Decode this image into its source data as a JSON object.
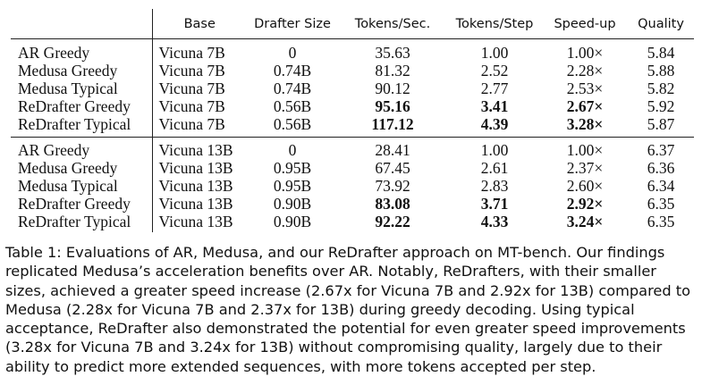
{
  "table": {
    "headers": [
      "",
      "Base",
      "Drafter Size",
      "Tokens/Sec.",
      "Tokens/Step",
      "Speed-up",
      "Quality"
    ],
    "groups": [
      [
        {
          "method": "AR Greedy",
          "base": "Vicuna 7B",
          "drafter_size": "0",
          "tokens_sec": "35.63",
          "tokens_step": "1.00",
          "speedup": "1.00×",
          "quality": "5.84"
        },
        {
          "method": "Medusa Greedy",
          "base": "Vicuna 7B",
          "drafter_size": "0.74B",
          "tokens_sec": "81.32",
          "tokens_step": "2.52",
          "speedup": "2.28×",
          "quality": "5.88"
        },
        {
          "method": "Medusa Typical",
          "base": "Vicuna 7B",
          "drafter_size": "0.74B",
          "tokens_sec": "90.12",
          "tokens_step": "2.77",
          "speedup": "2.53×",
          "quality": "5.82"
        },
        {
          "method": "ReDrafter Greedy",
          "base": "Vicuna 7B",
          "drafter_size": "0.56B",
          "tokens_sec": "95.16",
          "tokens_step": "3.41",
          "speedup": "2.67×",
          "quality": "5.92"
        },
        {
          "method": "ReDrafter Typical",
          "base": "Vicuna 7B",
          "drafter_size": "0.56B",
          "tokens_sec": "117.12",
          "tokens_step": "4.39",
          "speedup": "3.28×",
          "quality": "5.87"
        }
      ],
      [
        {
          "method": "AR Greedy",
          "base": "Vicuna 13B",
          "drafter_size": "0",
          "tokens_sec": "28.41",
          "tokens_step": "1.00",
          "speedup": "1.00×",
          "quality": "6.37"
        },
        {
          "method": "Medusa Greedy",
          "base": "Vicuna 13B",
          "drafter_size": "0.95B",
          "tokens_sec": "67.45",
          "tokens_step": "2.61",
          "speedup": "2.37×",
          "quality": "6.36"
        },
        {
          "method": "Medusa Typical",
          "base": "Vicuna 13B",
          "drafter_size": "0.95B",
          "tokens_sec": "73.92",
          "tokens_step": "2.83",
          "speedup": "2.60×",
          "quality": "6.34"
        },
        {
          "method": "ReDrafter Greedy",
          "base": "Vicuna 13B",
          "drafter_size": "0.90B",
          "tokens_sec": "83.08",
          "tokens_step": "3.71",
          "speedup": "2.92×",
          "quality": "6.35"
        },
        {
          "method": "ReDrafter Typical",
          "base": "Vicuna 13B",
          "drafter_size": "0.90B",
          "tokens_sec": "92.22",
          "tokens_step": "4.33",
          "speedup": "3.24×",
          "quality": "6.35"
        }
      ]
    ]
  },
  "caption": "Table 1: Evaluations of AR, Medusa, and our ReDrafter approach on MT-bench. Our findings replicated Medusa’s acceleration benefits over AR. Notably, ReDrafters, with their smaller sizes, achieved a greater speed increase (2.67x for Vicuna 7B and 2.92x for 13B) compared to Medusa (2.28x for Vicuna 7B and 2.37x for 13B) during greedy decoding. Using typical acceptance, ReDrafter also demonstrated the potential for even greater speed improvements (3.28x for Vicuna 7B and 3.24x for 13B) without compromising quality, largely due to their ability to predict more extended sequences, with more tokens accepted per step."
}
